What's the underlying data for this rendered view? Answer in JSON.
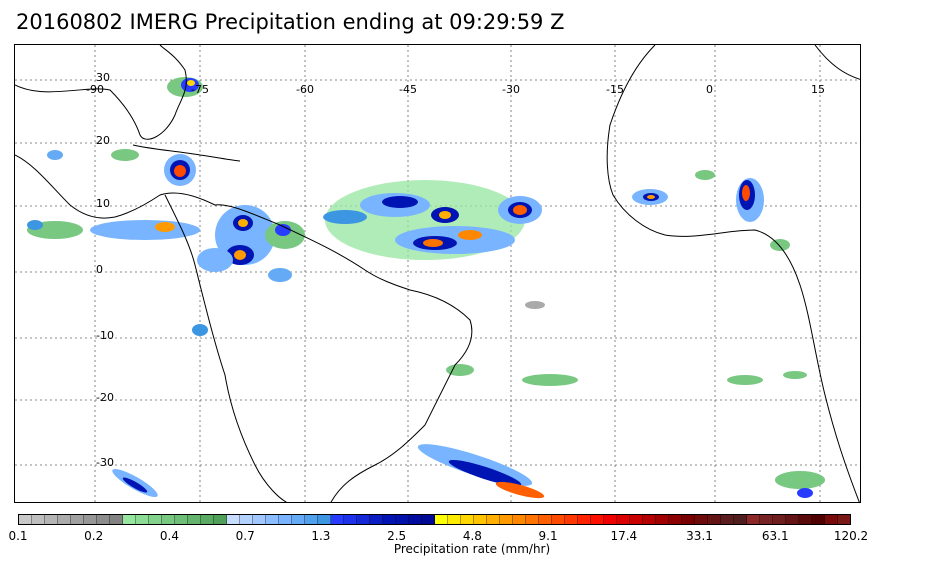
{
  "title": "20160802 IMERG Precipitation ending at 09:29:59 Z",
  "map": {
    "longitude_labels": [
      "-90",
      "-75",
      "-60",
      "-45",
      "-30",
      "-15",
      "0",
      "15"
    ],
    "latitude_labels": [
      "30",
      "20",
      "10",
      "0",
      "-10",
      "-20",
      "-30"
    ]
  },
  "colorbar": {
    "label": "Precipitation rate (mm/hr)",
    "tick_labels": [
      "0.1",
      "0.2",
      "0.4",
      "0.7",
      "1.3",
      "2.5",
      "4.8",
      "9.1",
      "17.4",
      "33.1",
      "63.1",
      "120.2"
    ],
    "colors": [
      "#c8c8c8",
      "#bebebe",
      "#b4b4b4",
      "#aaaaaa",
      "#a0a0a0",
      "#969696",
      "#8c8c8c",
      "#828282",
      "#96e6a0",
      "#8cdc96",
      "#82d28c",
      "#78c882",
      "#6ebe78",
      "#64b46e",
      "#5aaa64",
      "#50a05a",
      "#c8dcff",
      "#b4d2ff",
      "#a0c8ff",
      "#8cbeff",
      "#78b4ff",
      "#64aaf5",
      "#50a0eb",
      "#3c96e1",
      "#283cff",
      "#1e32eb",
      "#1428d7",
      "#0a1ec3",
      "#0014b4",
      "#0010aa",
      "#000ca0",
      "#000896",
      "#ffff00",
      "#ffeb00",
      "#ffd700",
      "#ffc300",
      "#ffaf00",
      "#ff9b00",
      "#ff8700",
      "#ff7300",
      "#ff5f00",
      "#ff4b00",
      "#ff3700",
      "#ff2300",
      "#ff0f00",
      "#f00000",
      "#dc0000",
      "#c80000",
      "#b40000",
      "#a00000",
      "#8c0000",
      "#780000",
      "#6e0a0a",
      "#641414",
      "#5a1e1e",
      "#501e1e",
      "#8c2828",
      "#782323",
      "#6e1e1e",
      "#641414",
      "#5a0a0a",
      "#500000",
      "#780a0a",
      "#7a1818"
    ]
  }
}
